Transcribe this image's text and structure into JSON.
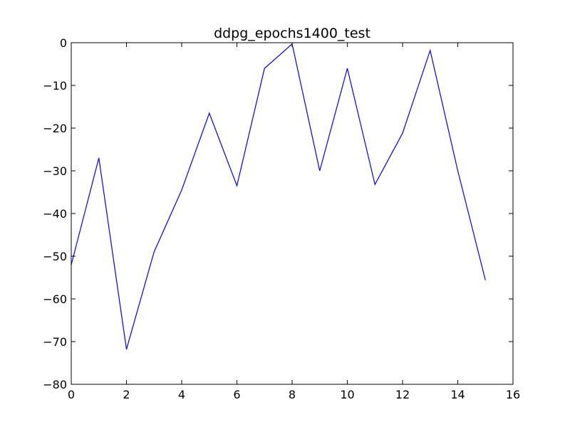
{
  "chart_data": {
    "type": "line",
    "title": "ddpg_epochs1400_test",
    "xlabel": "",
    "ylabel": "",
    "xlim": [
      0,
      16
    ],
    "ylim": [
      -80,
      0
    ],
    "x_ticks": [
      0,
      2,
      4,
      6,
      8,
      10,
      12,
      14,
      16
    ],
    "y_ticks": [
      0,
      -10,
      -20,
      -30,
      -40,
      -50,
      -60,
      -70,
      -80
    ],
    "x_tick_labels": [
      "0",
      "2",
      "4",
      "6",
      "8",
      "10",
      "12",
      "14",
      "16"
    ],
    "y_tick_labels": [
      "0",
      "−10",
      "−20",
      "−30",
      "−40",
      "−50",
      "−60",
      "−70",
      "−80"
    ],
    "grid": false,
    "series": [
      {
        "color": "#0000ff",
        "x": [
          0,
          1,
          2,
          3,
          4,
          5,
          6,
          7,
          8,
          9,
          10,
          11,
          12,
          13,
          14,
          15
        ],
        "y": [
          -52.0,
          -27.0,
          -71.8,
          -49.0,
          -34.5,
          -16.5,
          -33.5,
          -6.0,
          -0.3,
          -30.0,
          -6.0,
          -33.2,
          -21.2,
          -1.8,
          -30.0,
          -55.6
        ]
      }
    ]
  }
}
